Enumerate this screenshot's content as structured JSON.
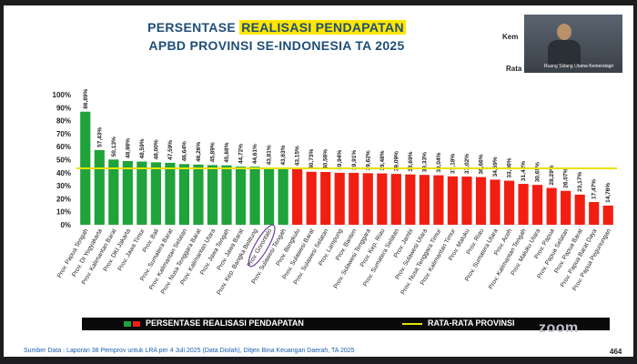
{
  "slide": {
    "title_line1_pre": "PERSENTASE ",
    "title_line1_highlight": "REALISASI PENDAPATAN",
    "title_line2": "APBD PROVINSI SE-INDONESIA TA 2025",
    "source": "Sumber Data : Laporan 38 Pemprov untuk LRA per 4 Juli 2025 (Data Diolah), Ditjen Bina Keuangan Daerah, TA 2025",
    "page_number": "464",
    "overlay_kem": "Kem",
    "overlay_rata": "Rata",
    "video_label": "Ruang Sidang Utama Kemendagri",
    "zoom_logo": "zoom"
  },
  "legend": {
    "bar_label": "PERSENTASE REALISASI PENDAPATAN",
    "line_label": "RATA-RATA PROVINSI"
  },
  "colors": {
    "above_average": "#1fa33a",
    "below_average": "#f11f12",
    "average_line": "#e8e000"
  },
  "chart_data": {
    "type": "bar",
    "categories": [
      "Prov. Papua Tengah",
      "Prov. DI Yogyakarta",
      "Prov. Kalimantan Barat",
      "Prov. DKI Jakarta",
      "Prov. Jawa Timur",
      "Prov. Bali",
      "Prov. Sumatera Barat",
      "Prov. Kalimantan Selatan",
      "Prov. Nusa Tenggara Barat",
      "Prov. Kalimantan Utara",
      "Prov. Jawa Tengah",
      "Prov. Jawa Barat",
      "Prov. Kep. Bangka Belitung",
      "Prov. Gorontalo",
      "Prov. Sulawesi Tengah",
      "Prov. Bengkulu",
      "Prov. Sulawesi Barat",
      "Prov. Sulawesi Selatan",
      "Prov. Lampung",
      "Prov. Banten",
      "Prov. Sulawesi Tenggara",
      "Prov. Kep. Riau",
      "Prov. Sumatera Selatan",
      "Prov. Jambi",
      "Prov. Sulawesi Utara",
      "Prov. Nusa Tenggara Timur",
      "Prov. Kalimantan Timur",
      "Prov. Maluku",
      "Prov. Riau",
      "Prov. Sumatera Utara",
      "Prov. Aceh",
      "Prov. Kalimantan Tengah",
      "Prov. Maluku Utara",
      "Prov. Papua",
      "Prov. Papua Selatan",
      "Prov. Papua Barat",
      "Prov. Papua Barat Daya",
      "Prov. Papua Pegunungan"
    ],
    "values": [
      86.89,
      57.43,
      50.13,
      48.98,
      48.59,
      48.0,
      47.59,
      46.64,
      46.26,
      45.89,
      45.68,
      44.72,
      44.61,
      43.81,
      43.63,
      43.15,
      40.73,
      40.56,
      39.94,
      39.91,
      39.62,
      39.48,
      39.09,
      38.69,
      38.33,
      38.04,
      37.18,
      37.02,
      36.66,
      34.69,
      33.86,
      31.42,
      30.65,
      28.29,
      26.07,
      23.17,
      17.47,
      14.76
    ],
    "value_labels": [
      "86,89%",
      "57,43%",
      "50,13%",
      "48,98%",
      "48,59%",
      "48,00%",
      "47,59%",
      "46,64%",
      "46,26%",
      "45,89%",
      "45,68%",
      "44,72%",
      "44,61%",
      "43,81%",
      "43,63%",
      "43,15%",
      "40,73%",
      "40,56%",
      "39,94%",
      "39,91%",
      "39,62%",
      "39,48%",
      "39,09%",
      "38,69%",
      "38,33%",
      "38,04%",
      "37,18%",
      "37,02%",
      "36,66%",
      "34,69%",
      "33,86%",
      "31,42%",
      "30,65%",
      "28,29%",
      "26,07%",
      "23,17%",
      "17,47%",
      "14,76%"
    ],
    "above_average_count": 15,
    "average": 43.4,
    "ylim": [
      0,
      100
    ],
    "yticks": [
      0,
      10,
      20,
      30,
      40,
      50,
      60,
      70,
      80,
      90,
      100
    ],
    "ytick_labels": [
      "0%",
      "10%",
      "20%",
      "30%",
      "40%",
      "50%",
      "60%",
      "70%",
      "80%",
      "90%",
      "100%"
    ],
    "highlighted_category": "Prov. Gorontalo",
    "grid": false,
    "legend_position": "bottom"
  }
}
